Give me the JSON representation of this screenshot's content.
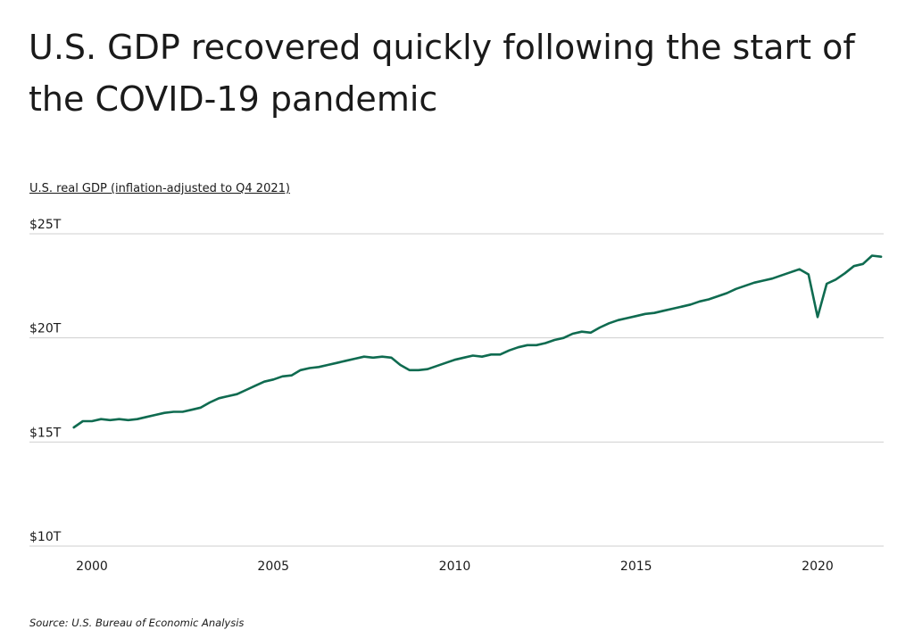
{
  "chart_data": {
    "type": "line",
    "title": "U.S. GDP recovered quickly following the start of the COVID-19 pandemic",
    "subtitle": "U.S. real GDP (inflation-adjusted to Q4 2021)",
    "source": "Source:  U.S. Bureau of Economic Analysis",
    "ylim": [
      10,
      25
    ],
    "xlim": [
      2000,
      2020
    ],
    "grid": true,
    "line_color": "#0f6b50",
    "y_ticks": [
      {
        "value": 25,
        "label": "$25T"
      },
      {
        "value": 20,
        "label": "$20T"
      },
      {
        "value": 15,
        "label": "$15T"
      },
      {
        "value": 10,
        "label": "$10T"
      }
    ],
    "x_ticks": [
      {
        "value": 2000,
        "label": "2000"
      },
      {
        "value": 2005,
        "label": "2005"
      },
      {
        "value": 2010,
        "label": "2010"
      },
      {
        "value": 2015,
        "label": "2015"
      },
      {
        "value": 2020,
        "label": "2020"
      }
    ],
    "series": [
      {
        "x": [
          1999.5,
          1999.75,
          2000.0,
          2000.25,
          2000.5,
          2000.75,
          2001.0,
          2001.25,
          2001.5,
          2001.75,
          2002.0,
          2002.25,
          2002.5,
          2002.75,
          2003.0,
          2003.25,
          2003.5,
          2003.75,
          2004.0,
          2004.25,
          2004.5,
          2004.75,
          2005.0,
          2005.25,
          2005.5,
          2005.75,
          2006.0,
          2006.25,
          2006.5,
          2006.75,
          2007.0,
          2007.25,
          2007.5,
          2007.75,
          2008.0,
          2008.25,
          2008.5,
          2008.75,
          2009.0,
          2009.25,
          2009.5,
          2009.75,
          2010.0,
          2010.25,
          2010.5,
          2010.75,
          2011.0,
          2011.25,
          2011.5,
          2011.75,
          2012.0,
          2012.25,
          2012.5,
          2012.75,
          2013.0,
          2013.25,
          2013.5,
          2013.75,
          2014.0,
          2014.25,
          2014.5,
          2014.75,
          2015.0,
          2015.25,
          2015.5,
          2015.75,
          2016.0,
          2016.25,
          2016.5,
          2016.75,
          2017.0,
          2017.25,
          2017.5,
          2017.75,
          2018.0,
          2018.25,
          2018.5,
          2018.75,
          2019.0,
          2019.25,
          2019.5,
          2019.75,
          2020.0,
          2020.25,
          2020.5,
          2020.75,
          2021.0,
          2021.25,
          2021.5,
          2021.75
        ],
        "values": [
          15.7,
          16.0,
          16.0,
          16.1,
          16.05,
          16.1,
          16.05,
          16.1,
          16.2,
          16.3,
          16.4,
          16.45,
          16.45,
          16.55,
          16.65,
          16.9,
          17.1,
          17.2,
          17.3,
          17.5,
          17.7,
          17.9,
          18.0,
          18.15,
          18.2,
          18.45,
          18.55,
          18.6,
          18.7,
          18.8,
          18.9,
          19.0,
          19.1,
          19.05,
          19.1,
          19.05,
          18.7,
          18.45,
          18.45,
          18.5,
          18.65,
          18.8,
          18.95,
          19.05,
          19.15,
          19.1,
          19.2,
          19.2,
          19.4,
          19.55,
          19.65,
          19.65,
          19.75,
          19.9,
          20.0,
          20.2,
          20.3,
          20.25,
          20.5,
          20.7,
          20.85,
          20.95,
          21.05,
          21.15,
          21.2,
          21.3,
          21.4,
          21.5,
          21.6,
          21.75,
          21.85,
          22.0,
          22.15,
          22.35,
          22.5,
          22.65,
          22.75,
          22.85,
          23.0,
          23.15,
          23.3,
          23.05,
          21.0,
          22.6,
          22.8,
          23.1,
          23.45,
          23.55,
          23.95,
          23.9
        ]
      }
    ]
  }
}
